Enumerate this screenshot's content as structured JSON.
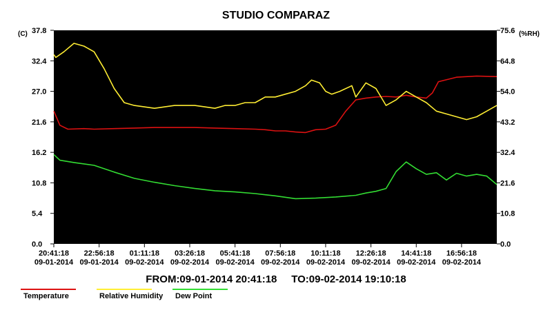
{
  "chart_data": {
    "type": "line",
    "title": "STUDIO COMPARAZ",
    "y_left_unit": "(C)",
    "y_right_unit": "(%RH)",
    "y_left_ticks": [
      "37.8",
      "32.4",
      "27.0",
      "21.6",
      "16.2",
      "10.8",
      "5.4",
      "0.0"
    ],
    "y_right_ticks": [
      "75.6",
      "64.8",
      "54.0",
      "43.2",
      "32.4",
      "21.6",
      "10.8",
      "0.0"
    ],
    "ylim_left": [
      0,
      37.8
    ],
    "ylim_right": [
      0,
      75.6
    ],
    "x_ticks": [
      {
        "time": "20:41:18",
        "date": "09-01-2014"
      },
      {
        "time": "22:56:18",
        "date": "09-01-2014"
      },
      {
        "time": "01:11:18",
        "date": "09-02-2014"
      },
      {
        "time": "03:26:18",
        "date": "09-02-2014"
      },
      {
        "time": "05:41:18",
        "date": "09-02-2014"
      },
      {
        "time": "07:56:18",
        "date": "09-02-2014"
      },
      {
        "time": "10:11:18",
        "date": "09-02-2014"
      },
      {
        "time": "12:26:18",
        "date": "09-02-2014"
      },
      {
        "time": "14:41:18",
        "date": "09-02-2014"
      },
      {
        "time": "16:56:18",
        "date": "09-02-2014"
      }
    ],
    "x_start": "09-01-2014 20:41:18",
    "x_end": "09-02-2014 19:10:18",
    "grid": false,
    "legend_position": "bottom-left",
    "range_from_label": "FROM:09-01-2014 20:41:18",
    "range_to_label": "TO:09-02-2014 19:10:18",
    "series": [
      {
        "name": "Temperature",
        "axis": "left",
        "color": "#dd1111",
        "x_hours": [
          0,
          0.3,
          0.7,
          1.5,
          2,
          3,
          4,
          5,
          6,
          7,
          8,
          9,
          10,
          10.5,
          11,
          11.5,
          12,
          12.5,
          13,
          13.5,
          14,
          14.5,
          15,
          15.5,
          16,
          16.5,
          17,
          17.5,
          18,
          18.5,
          18.8,
          19.1,
          20,
          21,
          22
        ],
        "values": [
          23.5,
          21,
          20.3,
          20.4,
          20.3,
          20.4,
          20.5,
          20.6,
          20.6,
          20.6,
          20.5,
          20.4,
          20.3,
          20.2,
          20,
          20,
          19.8,
          19.7,
          20.2,
          20.3,
          21,
          23.5,
          25.5,
          25.8,
          26,
          26.1,
          26,
          26.3,
          26,
          25.8,
          26.7,
          28.7,
          29.5,
          29.7,
          29.6
        ]
      },
      {
        "name": "Relative Humidity",
        "axis": "right",
        "color": "#ffee33",
        "x_hours": [
          0,
          0.1,
          0.5,
          1,
          1.5,
          2,
          2.5,
          3,
          3.5,
          4,
          5,
          6,
          7,
          8,
          8.5,
          9,
          9.5,
          10,
          10.5,
          11,
          11.5,
          12,
          12.5,
          12.8,
          13.2,
          13.5,
          13.8,
          14.2,
          14.8,
          15,
          15.5,
          16,
          16.5,
          17,
          17.5,
          18,
          18.5,
          19,
          19.5,
          20,
          20.5,
          21,
          21.5,
          22
        ],
        "values": [
          67,
          66,
          68,
          71,
          70,
          68,
          62,
          55,
          50,
          49,
          48,
          49,
          49,
          48,
          49,
          49,
          50,
          50,
          52,
          52,
          53,
          54,
          56,
          58,
          57,
          54,
          53,
          54,
          56,
          52,
          57,
          55,
          49,
          51,
          54,
          52,
          50,
          47,
          46,
          45,
          44,
          45,
          47,
          49
        ]
      },
      {
        "name": "Dew Point",
        "axis": "left",
        "color": "#33dd33",
        "x_hours": [
          0,
          0.3,
          1,
          2,
          3,
          4,
          5,
          6,
          7,
          8,
          9,
          10,
          10.5,
          11,
          12,
          13,
          14,
          15,
          15.5,
          16,
          16.5,
          17,
          17.5,
          18,
          18.5,
          19,
          19.5,
          20,
          20.5,
          21,
          21.5,
          22
        ],
        "values": [
          15.8,
          14.8,
          14.4,
          13.9,
          12.7,
          11.6,
          10.9,
          10.3,
          9.8,
          9.4,
          9.2,
          8.9,
          8.7,
          8.5,
          8.0,
          8.1,
          8.3,
          8.6,
          9.0,
          9.3,
          9.8,
          12.8,
          14.5,
          13.3,
          12.3,
          12.6,
          11.3,
          12.5,
          12.0,
          12.3,
          12.0,
          10.5
        ]
      }
    ]
  }
}
